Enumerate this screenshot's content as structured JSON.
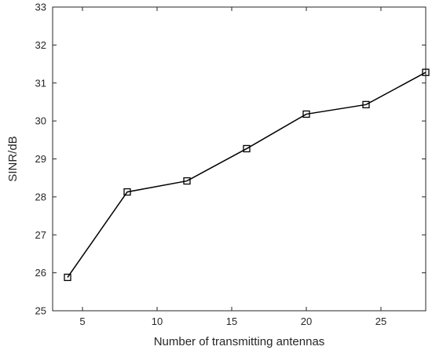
{
  "chart_data": {
    "type": "line",
    "xlabel": "Number of transmitting antennas",
    "ylabel": "SINR/dB",
    "xlim": [
      3,
      28
    ],
    "ylim": [
      25,
      33
    ],
    "xticks": [
      5,
      10,
      15,
      20,
      25
    ],
    "yticks": [
      25,
      26,
      27,
      28,
      29,
      30,
      31,
      32,
      33
    ],
    "grid": false,
    "marker": "square",
    "line_color": "#000000",
    "series": [
      {
        "x": [
          4,
          8,
          12,
          16,
          20,
          24,
          28
        ],
        "values": [
          25.88,
          28.13,
          28.42,
          29.27,
          30.18,
          30.43,
          31.28
        ]
      }
    ]
  }
}
